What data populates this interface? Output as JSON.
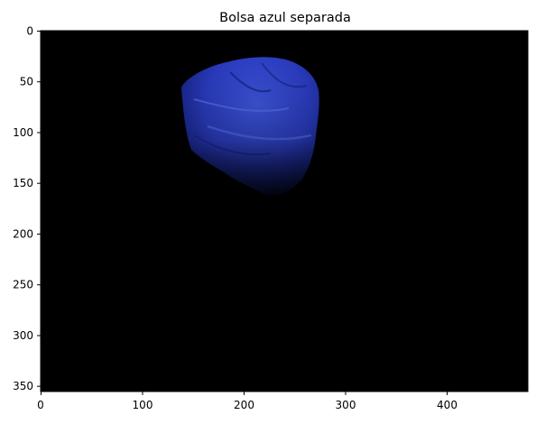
{
  "figure": {
    "title": "Bolsa azul separada",
    "image_description_colors": {
      "background": "#000000",
      "object_main": "#2b3fc4",
      "object_highlight": "#4a63e8",
      "object_shadow": "#0f1760"
    },
    "axes": {
      "x_ticks": [
        "0",
        "100",
        "200",
        "300",
        "400"
      ],
      "y_ticks": [
        "0",
        "50",
        "100",
        "150",
        "200",
        "250",
        "300",
        "350"
      ],
      "x_range": [
        0,
        480
      ],
      "y_range": [
        360,
        0
      ]
    }
  }
}
